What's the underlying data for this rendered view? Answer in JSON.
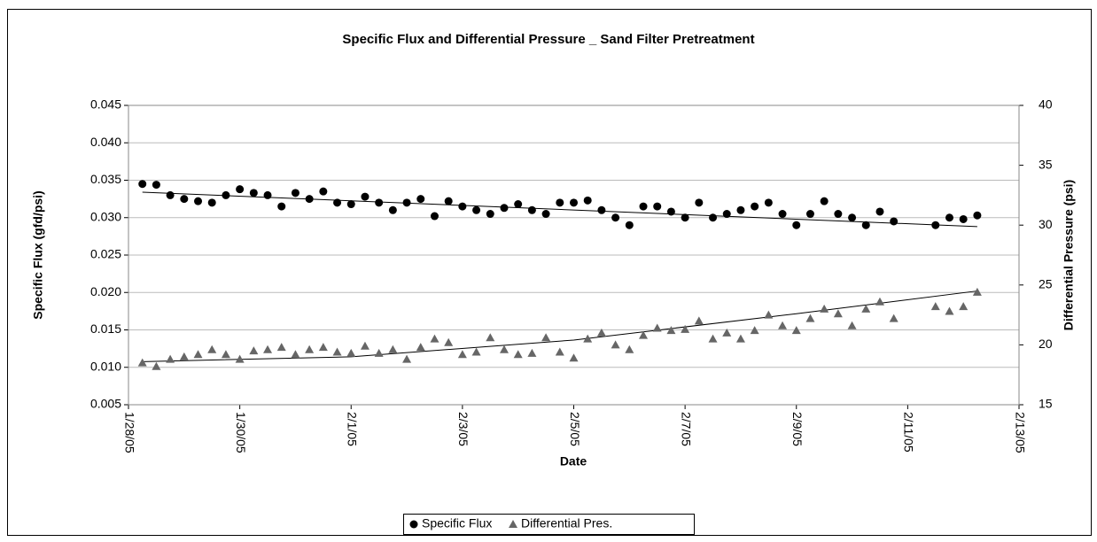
{
  "chart_data": {
    "type": "scatter",
    "title": "Specific Flux and Differential Pressure _ Sand Filter Pretreatment",
    "x_label": "Date",
    "y_label": "Specific Flux (gfd/psi)",
    "y2_label": "Differential Pressure (psi)",
    "x": [
      "2005-01-28T06:00",
      "2005-01-28T12:00",
      "2005-01-28T18:00",
      "2005-01-29T00:00",
      "2005-01-29T06:00",
      "2005-01-29T12:00",
      "2005-01-29T18:00",
      "2005-01-30T00:00",
      "2005-01-30T06:00",
      "2005-01-30T12:00",
      "2005-01-30T18:00",
      "2005-01-31T00:00",
      "2005-01-31T06:00",
      "2005-01-31T12:00",
      "2005-01-31T18:00",
      "2005-02-01T00:00",
      "2005-02-01T06:00",
      "2005-02-01T12:00",
      "2005-02-01T18:00",
      "2005-02-02T00:00",
      "2005-02-02T06:00",
      "2005-02-02T12:00",
      "2005-02-02T18:00",
      "2005-02-03T00:00",
      "2005-02-03T06:00",
      "2005-02-03T12:00",
      "2005-02-03T18:00",
      "2005-02-04T00:00",
      "2005-02-04T06:00",
      "2005-02-04T12:00",
      "2005-02-04T18:00",
      "2005-02-05T00:00",
      "2005-02-05T06:00",
      "2005-02-05T12:00",
      "2005-02-05T18:00",
      "2005-02-06T00:00",
      "2005-02-06T06:00",
      "2005-02-06T12:00",
      "2005-02-06T18:00",
      "2005-02-07T00:00",
      "2005-02-07T06:00",
      "2005-02-07T12:00",
      "2005-02-07T18:00",
      "2005-02-08T00:00",
      "2005-02-08T06:00",
      "2005-02-08T12:00",
      "2005-02-08T18:00",
      "2005-02-09T00:00",
      "2005-02-09T06:00",
      "2005-02-09T12:00",
      "2005-02-09T18:00",
      "2005-02-10T00:00",
      "2005-02-10T06:00",
      "2005-02-10T12:00",
      "2005-02-10T18:00",
      "2005-02-11T12:00",
      "2005-02-11T18:00",
      "2005-02-12T00:00",
      "2005-02-12T06:00"
    ],
    "series": [
      {
        "name": "Specific Flux",
        "color": "#000000",
        "marker": "circle",
        "values": [
          0.0345,
          0.0344,
          0.033,
          0.0325,
          0.0322,
          0.032,
          0.033,
          0.0338,
          0.0333,
          0.033,
          0.0315,
          0.0333,
          0.0325,
          0.0335,
          0.032,
          0.0318,
          0.0328,
          0.032,
          0.031,
          0.032,
          0.0325,
          0.0302,
          0.0322,
          0.0315,
          0.031,
          0.0305,
          0.0313,
          0.0318,
          0.031,
          0.0305,
          0.032,
          0.032,
          0.0323,
          0.031,
          0.03,
          0.029,
          0.0315,
          0.0315,
          0.0308,
          0.03,
          0.032,
          0.03,
          0.0305,
          0.031,
          0.0315,
          0.032,
          0.0305,
          0.029,
          0.0305,
          0.0322,
          0.0305,
          0.03,
          0.029,
          0.0308,
          0.0295,
          0.029,
          0.03,
          0.0298,
          0.0303
        ]
      },
      {
        "name": "Differential Pres.",
        "color": "#666666",
        "marker": "triangle",
        "axis": "y2",
        "values": [
          18.5,
          18.2,
          18.8,
          19.0,
          19.2,
          19.6,
          19.2,
          18.8,
          19.5,
          19.6,
          19.8,
          19.2,
          19.6,
          19.8,
          19.4,
          19.3,
          19.9,
          19.3,
          19.6,
          18.8,
          19.8,
          20.5,
          20.2,
          19.2,
          19.4,
          20.6,
          19.6,
          19.2,
          19.3,
          20.6,
          19.4,
          18.9,
          20.5,
          21.0,
          20.0,
          19.6,
          20.8,
          21.4,
          21.2,
          21.3,
          22.0,
          20.5,
          21.0,
          20.5,
          21.2,
          22.5,
          21.6,
          21.2,
          22.2,
          23.0,
          22.6,
          21.6,
          23.0,
          23.6,
          22.2,
          23.2,
          22.8,
          23.2,
          24.4
        ]
      }
    ],
    "trendlines": [
      {
        "x": [
          "2005-01-28T06:00",
          "2005-02-12T06:00"
        ],
        "values": [
          0.0334,
          0.0288
        ]
      },
      {
        "axis": "y2",
        "x": [
          "2005-01-28T06:00",
          "2005-02-01T00:00",
          "2005-02-05T00:00",
          "2005-02-09T00:00",
          "2005-02-12T06:00"
        ],
        "values": [
          18.6,
          19.0,
          20.4,
          22.6,
          24.5
        ]
      }
    ],
    "xlim": [
      "2005-01-28T00:00",
      "2005-02-13T00:00"
    ],
    "xticks": [
      {
        "value": "2005-01-28T00:00",
        "label": "1/28/05"
      },
      {
        "value": "2005-01-30T00:00",
        "label": "1/30/05"
      },
      {
        "value": "2005-02-01T00:00",
        "label": "2/1/05"
      },
      {
        "value": "2005-02-03T00:00",
        "label": "2/3/05"
      },
      {
        "value": "2005-02-05T00:00",
        "label": "2/5/05"
      },
      {
        "value": "2005-02-07T00:00",
        "label": "2/7/05"
      },
      {
        "value": "2005-02-09T00:00",
        "label": "2/9/05"
      },
      {
        "value": "2005-02-11T00:00",
        "label": "2/11/05"
      },
      {
        "value": "2005-02-13T00:00",
        "label": "2/13/05"
      }
    ],
    "ylim": [
      0.005,
      0.045
    ],
    "yticks": [
      0.005,
      {
        "value": 0.01,
        "label": "0.010"
      },
      0.015,
      {
        "value": 0.02,
        "label": "0.020"
      },
      0.025,
      {
        "value": 0.03,
        "label": "0.030"
      },
      0.035,
      {
        "value": 0.04,
        "label": "0.040"
      },
      0.045
    ],
    "y2lim": [
      15,
      40
    ],
    "y2ticks": [
      15,
      20,
      25,
      30,
      35,
      40
    ],
    "grid": true
  }
}
